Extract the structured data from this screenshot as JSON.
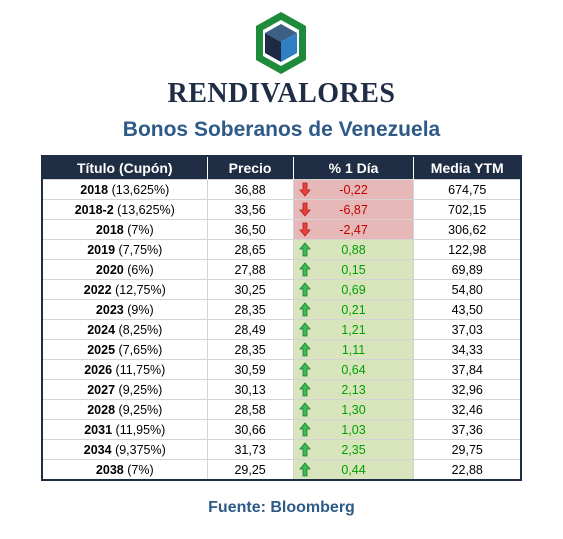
{
  "brand": "RENDIVALORES",
  "subtitle": "Bonos Soberanos de Venezuela",
  "table": {
    "headers": [
      "Título (Cupón)",
      "Precio",
      "% 1 Día",
      "Media YTM"
    ],
    "rows": [
      {
        "name": "2018",
        "coupon": "(13,625%)",
        "price": "36,88",
        "change": "-0,22",
        "direction": "down",
        "ytm": "674,75"
      },
      {
        "name": "2018-2",
        "coupon": "(13,625%)",
        "price": "33,56",
        "change": "-6,87",
        "direction": "down",
        "ytm": "702,15"
      },
      {
        "name": "2018",
        "coupon": "(7%)",
        "price": "36,50",
        "change": "-2,47",
        "direction": "down",
        "ytm": "306,62"
      },
      {
        "name": "2019",
        "coupon": "(7,75%)",
        "price": "28,65",
        "change": "0,88",
        "direction": "up",
        "ytm": "122,98"
      },
      {
        "name": "2020",
        "coupon": "(6%)",
        "price": "27,88",
        "change": "0,15",
        "direction": "up",
        "ytm": "69,89"
      },
      {
        "name": "2022",
        "coupon": "(12,75%)",
        "price": "30,25",
        "change": "0,69",
        "direction": "up",
        "ytm": "54,80"
      },
      {
        "name": "2023",
        "coupon": "(9%)",
        "price": "28,35",
        "change": "0,21",
        "direction": "up",
        "ytm": "43,50"
      },
      {
        "name": "2024",
        "coupon": "(8,25%)",
        "price": "28,49",
        "change": "1,21",
        "direction": "up",
        "ytm": "37,03"
      },
      {
        "name": "2025",
        "coupon": "(7,65%)",
        "price": "28,35",
        "change": "1,11",
        "direction": "up",
        "ytm": "34,33"
      },
      {
        "name": "2026",
        "coupon": "(11,75%)",
        "price": "30,59",
        "change": "0,64",
        "direction": "up",
        "ytm": "37,84"
      },
      {
        "name": "2027",
        "coupon": "(9,25%)",
        "price": "30,13",
        "change": "2,13",
        "direction": "up",
        "ytm": "32,96"
      },
      {
        "name": "2028",
        "coupon": "(9,25%)",
        "price": "28,58",
        "change": "1,30",
        "direction": "up",
        "ytm": "32,46"
      },
      {
        "name": "2031",
        "coupon": "(11,95%)",
        "price": "30,66",
        "change": "1,03",
        "direction": "up",
        "ytm": "37,36"
      },
      {
        "name": "2034",
        "coupon": "(9,375%)",
        "price": "31,73",
        "change": "2,35",
        "direction": "up",
        "ytm": "29,75"
      },
      {
        "name": "2038",
        "coupon": "(7%)",
        "price": "29,25",
        "change": "0,44",
        "direction": "up",
        "ytm": "22,88"
      }
    ]
  },
  "source": "Fuente: Bloomberg",
  "colors": {
    "navy": "#1f2d45",
    "accent_blue": "#2e5a88",
    "negative_fill": "#e6b8b7",
    "negative_text": "#c00000",
    "positive_fill": "#d8e4bc",
    "positive_text": "#00a000",
    "logo_green": "#1e8a3c"
  },
  "icons": {
    "logo": "green-hexagon-blue-cube-logo",
    "down": "red-down-arrow-icon",
    "up": "green-up-arrow-icon"
  }
}
